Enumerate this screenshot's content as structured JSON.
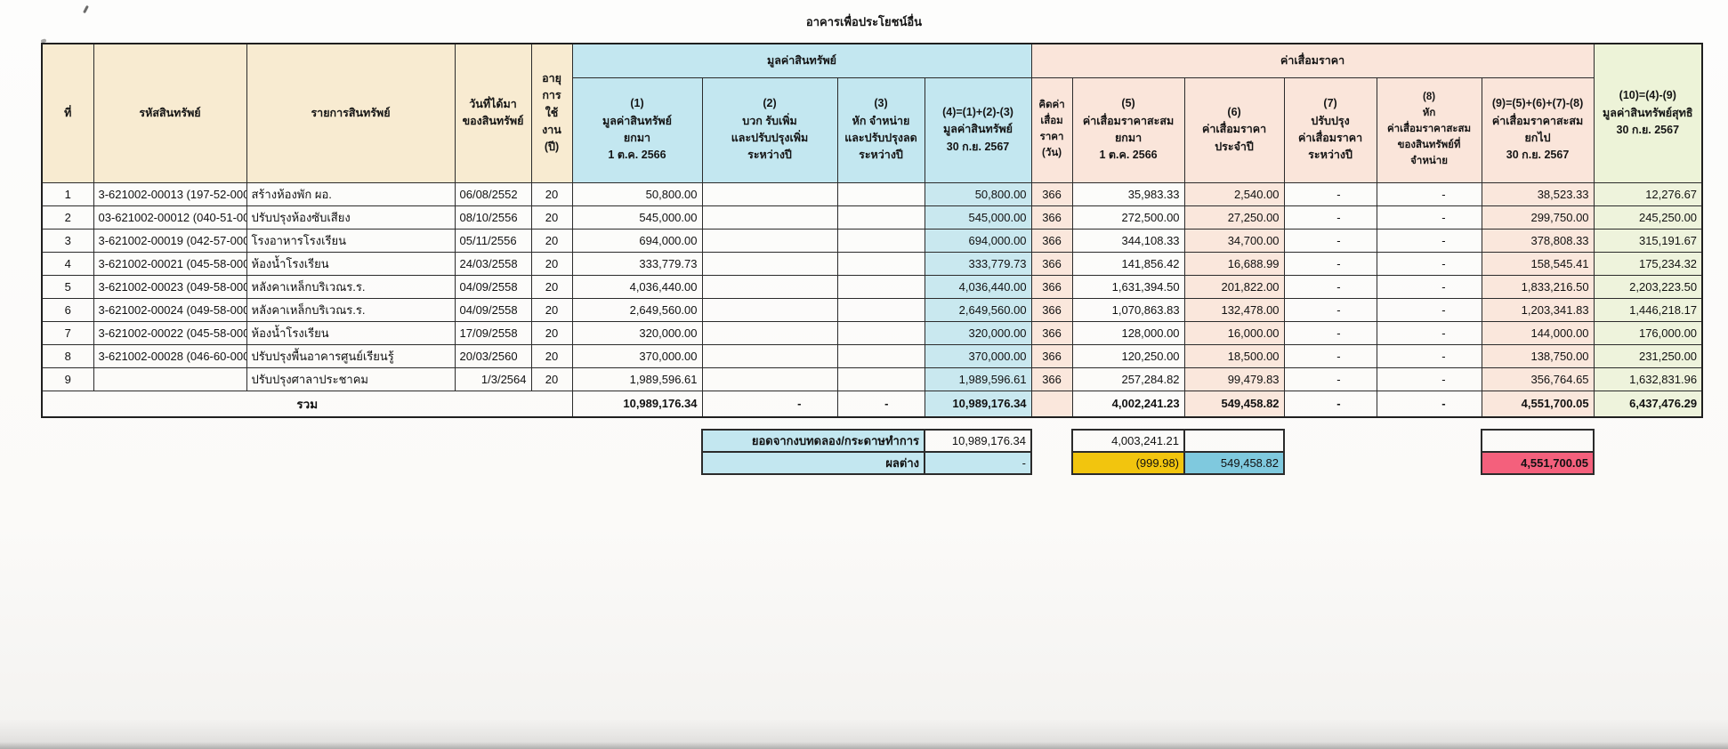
{
  "title": "อาคารเพื่อประโยชน์อื่น",
  "colors": {
    "header_cream": "#f8ebd1",
    "asset_value_blue": "#c3e7f0",
    "depreciation_pink": "#fae5da",
    "net_value_green": "#edf3d8",
    "diff_yellow": "#f2c50e",
    "diff_blue": "#7fc9de",
    "diff_red": "#f4607c"
  },
  "table": {
    "group_headers": {
      "asset_value": "มูลค่าสินทรัพย์",
      "depreciation": "ค่าเสื่อมราคา"
    },
    "headers": {
      "no": "ที่",
      "code": "รหัสสินทรัพย์",
      "name": "รายการสินทรัพย์",
      "date": "วันที่ได้มา\nของสินทรัพย์",
      "life": "อายุการ\nใช้งาน\n(ปี)",
      "c1": "(1)\nมูลค่าสินทรัพย์\nยกมา\n1 ต.ค. 2566",
      "c2": "(2)\nบวก รับเพิ่ม\nและปรับปรุงเพิ่ม\nระหว่างปี",
      "c3": "(3)\nหัก จำหน่าย\nและปรับปรุงลด\nระหว่างปี",
      "c4": "(4)=(1)+(2)-(3)\nมูลค่าสินทรัพย์\n30 ก.ย. 2567",
      "days": "คิดค่า\nเสื่อม\nราคา\n(วัน)",
      "c5": "(5)\nค่าเสื่อมราคาสะสม\nยกมา\n1 ต.ค. 2566",
      "c6": "(6)\nค่าเสื่อมราคา\nประจำปี",
      "c7": "(7)\nปรับปรุง\nค่าเสื่อมราคา\nระหว่างปี",
      "c8": "(8)\nหัก\nค่าเสื่อมราคาสะสม\nของสินทรัพย์ที่จำหน่าย",
      "c9": "(9)=(5)+(6)+(7)-(8)\nค่าเสื่อมราคาสะสม\nยกไป\n30 ก.ย. 2567",
      "c10": "(10)=(4)-(9)\nมูลค่าสินทรัพย์สุทธิ\n30 ก.ย. 2567"
    },
    "rows": [
      [
        "1",
        "3-621002-00013 (197-52-000",
        "สร้างห้องพัก ผอ.",
        "06/08/2552",
        "20",
        "50,800.00",
        "",
        "",
        "50,800.00",
        "366",
        "35,983.33",
        "2,540.00",
        "-",
        "-",
        "38,523.33",
        "12,276.67"
      ],
      [
        "2",
        "03-621002-00012 (040-51-00",
        "ปรับปรุงห้องซับเสียง",
        "08/10/2556",
        "20",
        "545,000.00",
        "",
        "",
        "545,000.00",
        "366",
        "272,500.00",
        "27,250.00",
        "-",
        "-",
        "299,750.00",
        "245,250.00"
      ],
      [
        "3",
        "3-621002-00019 (042-57-000",
        "โรงอาหารโรงเรียน",
        "05/11/2556",
        "20",
        "694,000.00",
        "",
        "",
        "694,000.00",
        "366",
        "344,108.33",
        "34,700.00",
        "-",
        "-",
        "378,808.33",
        "315,191.67"
      ],
      [
        "4",
        "3-621002-00021 (045-58-000",
        "ห้องน้ำโรงเรียน",
        "24/03/2558",
        "20",
        "333,779.73",
        "",
        "",
        "333,779.73",
        "366",
        "141,856.42",
        "16,688.99",
        "-",
        "-",
        "158,545.41",
        "175,234.32"
      ],
      [
        "5",
        "3-621002-00023 (049-58-000",
        "หลังคาเหล็กบริเวณร.ร.",
        "04/09/2558",
        "20",
        "4,036,440.00",
        "",
        "",
        "4,036,440.00",
        "366",
        "1,631,394.50",
        "201,822.00",
        "-",
        "-",
        "1,833,216.50",
        "2,203,223.50"
      ],
      [
        "6",
        "3-621002-00024 (049-58-000",
        "หลังคาเหล็กบริเวณร.ร.",
        "04/09/2558",
        "20",
        "2,649,560.00",
        "",
        "",
        "2,649,560.00",
        "366",
        "1,070,863.83",
        "132,478.00",
        "-",
        "-",
        "1,203,341.83",
        "1,446,218.17"
      ],
      [
        "7",
        "3-621002-00022 (045-58-000",
        "ห้องน้ำโรงเรียน",
        "17/09/2558",
        "20",
        "320,000.00",
        "",
        "",
        "320,000.00",
        "366",
        "128,000.00",
        "16,000.00",
        "-",
        "-",
        "144,000.00",
        "176,000.00"
      ],
      [
        "8",
        "3-621002-00028 (046-60-000",
        "ปรับปรุงพื้นอาคารศูนย์เรียนรู้",
        "20/03/2560",
        "20",
        "370,000.00",
        "",
        "",
        "370,000.00",
        "366",
        "120,250.00",
        "18,500.00",
        "-",
        "-",
        "138,750.00",
        "231,250.00"
      ],
      [
        "9",
        "",
        "ปรับปรุงศาลาประชาคม",
        "1/3/2564",
        "20",
        "1,989,596.61",
        "",
        "",
        "1,989,596.61",
        "366",
        "257,284.82",
        "99,479.83",
        "-",
        "-",
        "356,764.65",
        "1,632,831.96"
      ]
    ],
    "total": {
      "label": "รวม",
      "c1": "10,989,176.34",
      "c2": "-",
      "c3": "-",
      "c4": "10,989,176.34",
      "days": "",
      "c5": "4,002,241.23",
      "c6": "549,458.82",
      "c7": "-",
      "c8": "-",
      "c9": "4,551,700.05",
      "c10": "6,437,476.29"
    }
  },
  "summary": {
    "box1": {
      "row1_label": "ยอดจากงบทดลอง/กระดาษทำการ",
      "row1_value": "10,989,176.34",
      "row2_label": "ผลต่าง",
      "row2_value": "-"
    },
    "box2": {
      "row1_left": "4,003,241.21",
      "row1_right": "",
      "row2_left": "(999.98)",
      "row2_right": "549,458.82"
    },
    "box3": {
      "row1": "",
      "row2": "4,551,700.05"
    }
  }
}
